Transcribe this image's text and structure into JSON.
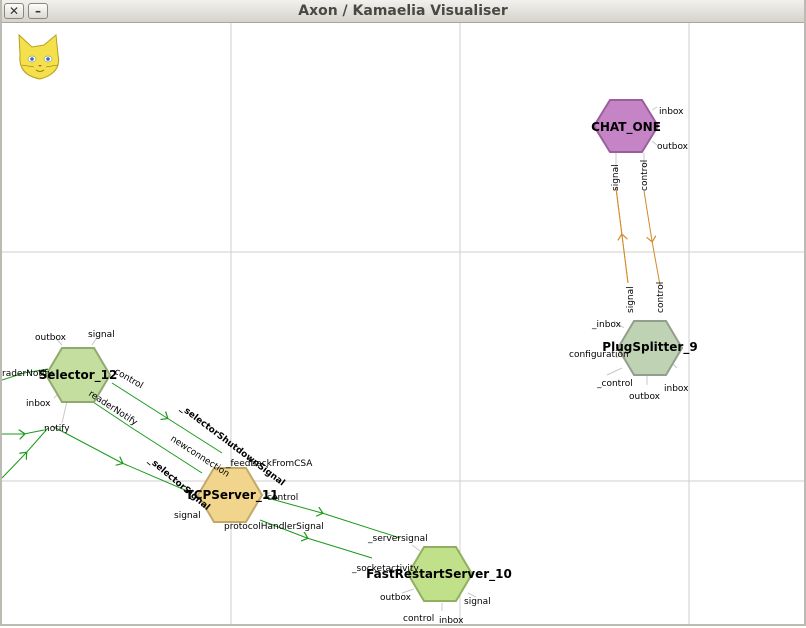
{
  "window": {
    "title": "Axon / Kamaelia Visualiser",
    "close_glyph": "✕",
    "minimize_glyph": "–"
  },
  "logo": "cat-icon",
  "nodes": [
    {
      "name": "CHAT_ONE",
      "kind": "chat",
      "fill": "#c584c6",
      "stroke": "#9a5f9b",
      "ports": {
        "inbox": "inbox",
        "outbox": "outbox",
        "signal": "signal",
        "control": "control"
      }
    },
    {
      "name": "PlugSplitter_9",
      "kind": "splitter",
      "fill": "#bfd2b4",
      "stroke": "#939e8c",
      "ports": {
        "signal": "signal",
        "control": "control",
        "inbox": "_inbox",
        "configuration": "configuration",
        "_control": "_control",
        "inbox2": "inbox",
        "outbox": "outbox"
      }
    },
    {
      "name": "Selector_12",
      "kind": "selector",
      "fill": "#c3de9e",
      "stroke": "#8faa6e",
      "ports": {
        "outbox": "outbox",
        "signal": "signal",
        "readerNotify": "raderNotify",
        "inbox": "inbox",
        "notify": "notify",
        "control": "control",
        "readerNotify2": "readerNotify"
      }
    },
    {
      "name": "TCPServer_11",
      "kind": "tcp",
      "fill": "#f1d58c",
      "stroke": "#c4a868",
      "ports": {
        "feedback": "_feedbackFromCSA",
        "selectorShutdown": "_selectorShutdownSignal",
        "newconnection": "newconnection",
        "selectorSignal": "_selectorSignal",
        "control": "control",
        "signal": "signal",
        "protocol": "protocolHandlerSignal"
      }
    },
    {
      "name": "FastRestartServer_10",
      "kind": "fastrestart",
      "fill": "#c0e08a",
      "stroke": "#90b060",
      "ports": {
        "serversignal": "_serversignal",
        "socketactivity": "_socketactivity",
        "outbox": "outbox",
        "signal": "signal",
        "control": "control",
        "inbox": "inbox"
      }
    }
  ],
  "colors": {
    "grid": "#cfcfcf",
    "link_green": "#1a9a1a",
    "link_orange": "#d38a2a"
  }
}
